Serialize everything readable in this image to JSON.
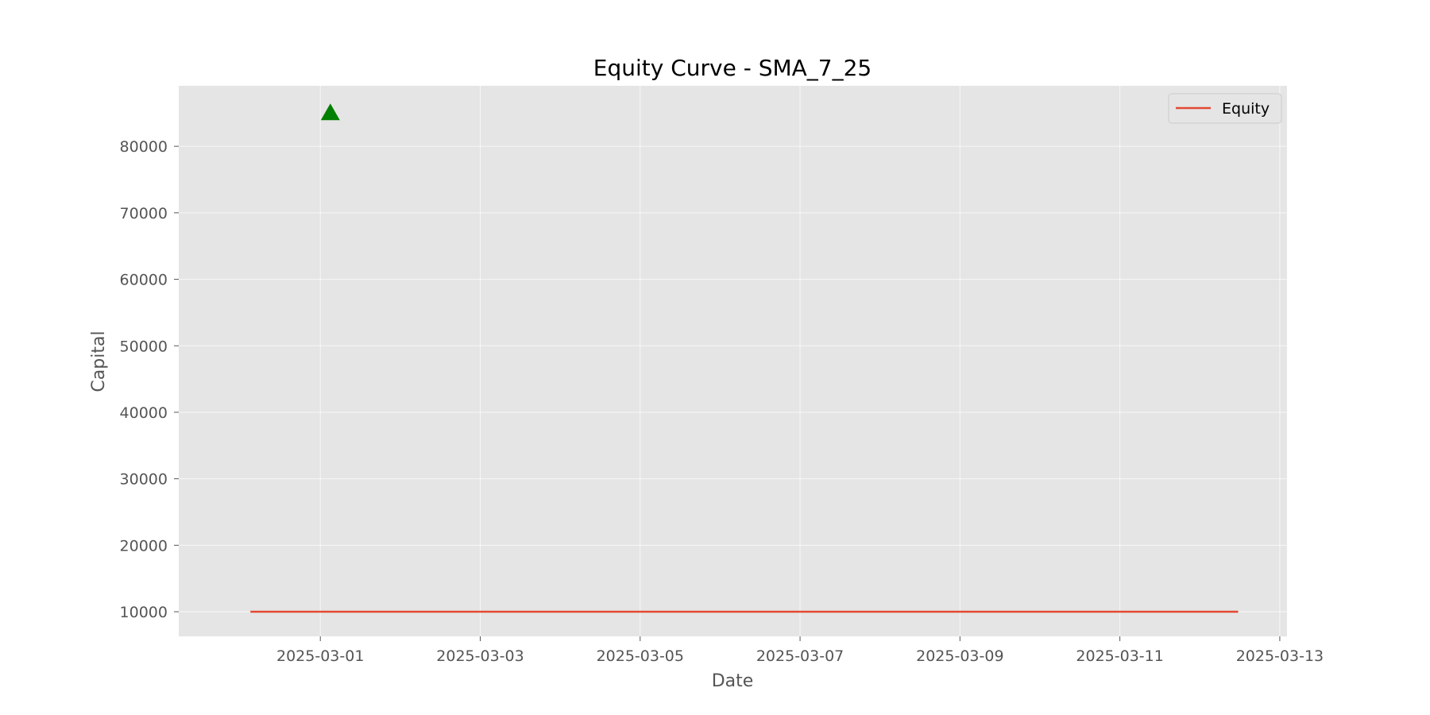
{
  "chart_data": {
    "type": "line",
    "title": "Equity Curve - SMA_7_25",
    "xlabel": "Date",
    "ylabel": "Capital",
    "x_axis_type": "date",
    "xlim": [
      "2025-02-27T05:30:00",
      "2025-03-13T02:10:00"
    ],
    "ylim": [
      6300,
      89100
    ],
    "x_ticks": [
      "2025-03-01",
      "2025-03-03",
      "2025-03-05",
      "2025-03-07",
      "2025-03-09",
      "2025-03-11",
      "2025-03-13"
    ],
    "y_ticks": [
      10000,
      20000,
      30000,
      40000,
      50000,
      60000,
      70000,
      80000
    ],
    "grid": true,
    "legend": {
      "placement": "top-right",
      "entries": [
        "Equity"
      ]
    },
    "series": [
      {
        "name": "Equity",
        "color": "#E24A33",
        "points": [
          {
            "x": "2025-02-28T03:00:00",
            "y": 10000
          },
          {
            "x": "2025-03-12T11:30:00",
            "y": 10000
          }
        ]
      }
    ],
    "markers": [
      {
        "shape": "triangle-up",
        "color": "#008000",
        "x": "2025-03-01T03:00:00",
        "y": 85000
      }
    ],
    "colors": {
      "plot_background": "#E5E5E5",
      "grid": "#FFFFFF"
    }
  }
}
